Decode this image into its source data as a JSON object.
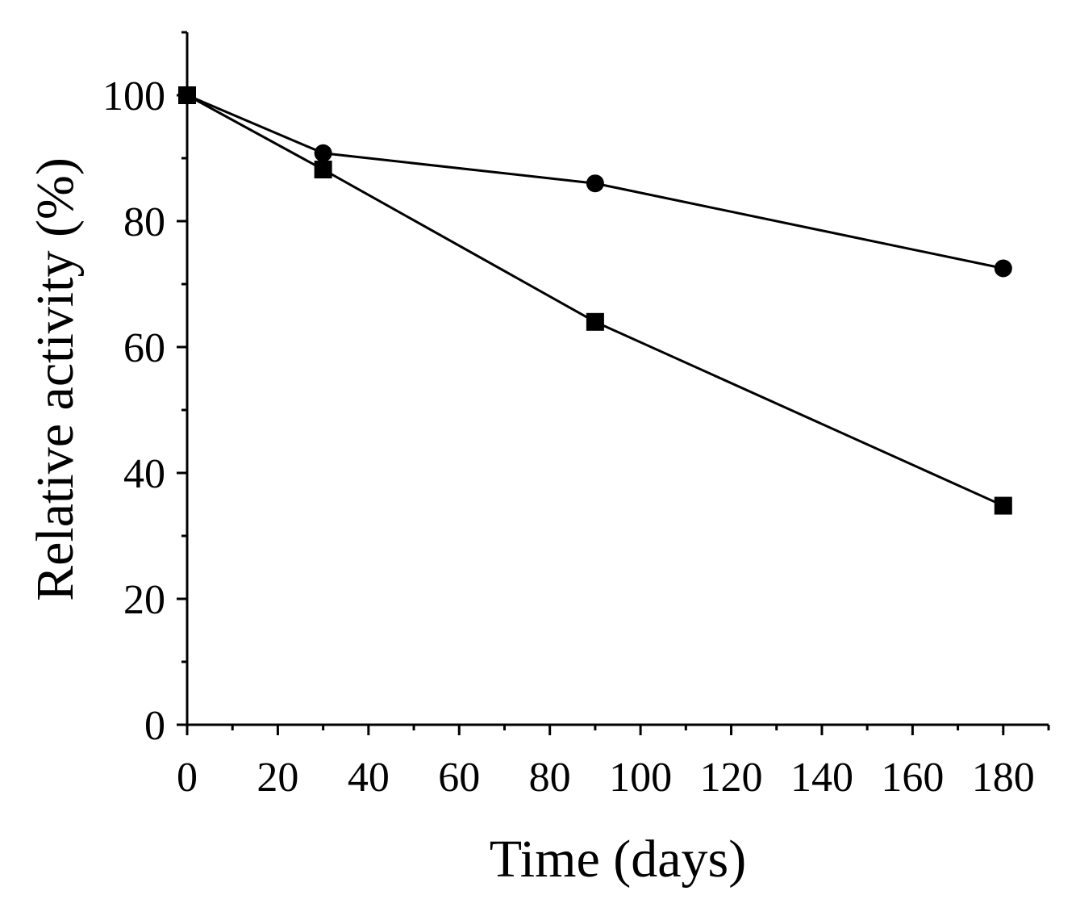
{
  "chart_data": {
    "type": "line",
    "title": "",
    "xlabel": "Time (days)",
    "ylabel": "Relative activity (%)",
    "xlim": [
      0,
      190
    ],
    "ylim": [
      0,
      110
    ],
    "xticks": [
      0,
      20,
      40,
      60,
      80,
      100,
      120,
      140,
      160,
      180
    ],
    "xtick_labels": [
      "0",
      "20",
      "40",
      "60",
      "80",
      "100",
      "120",
      "140",
      "160",
      "180"
    ],
    "xminor_step": 10,
    "yticks": [
      0,
      20,
      40,
      60,
      80,
      100
    ],
    "ytick_labels": [
      "0",
      "20",
      "40",
      "60",
      "80",
      "100"
    ],
    "yminor_step": 10,
    "grid": false,
    "series": [
      {
        "name": "circle series",
        "marker": "circle",
        "x": [
          0,
          30,
          90,
          180
        ],
        "y": [
          100,
          90.8,
          86.0,
          72.5
        ]
      },
      {
        "name": "square series",
        "marker": "square",
        "x": [
          0,
          30,
          90,
          180
        ],
        "y": [
          100,
          88.2,
          64.0,
          34.8
        ]
      }
    ]
  }
}
